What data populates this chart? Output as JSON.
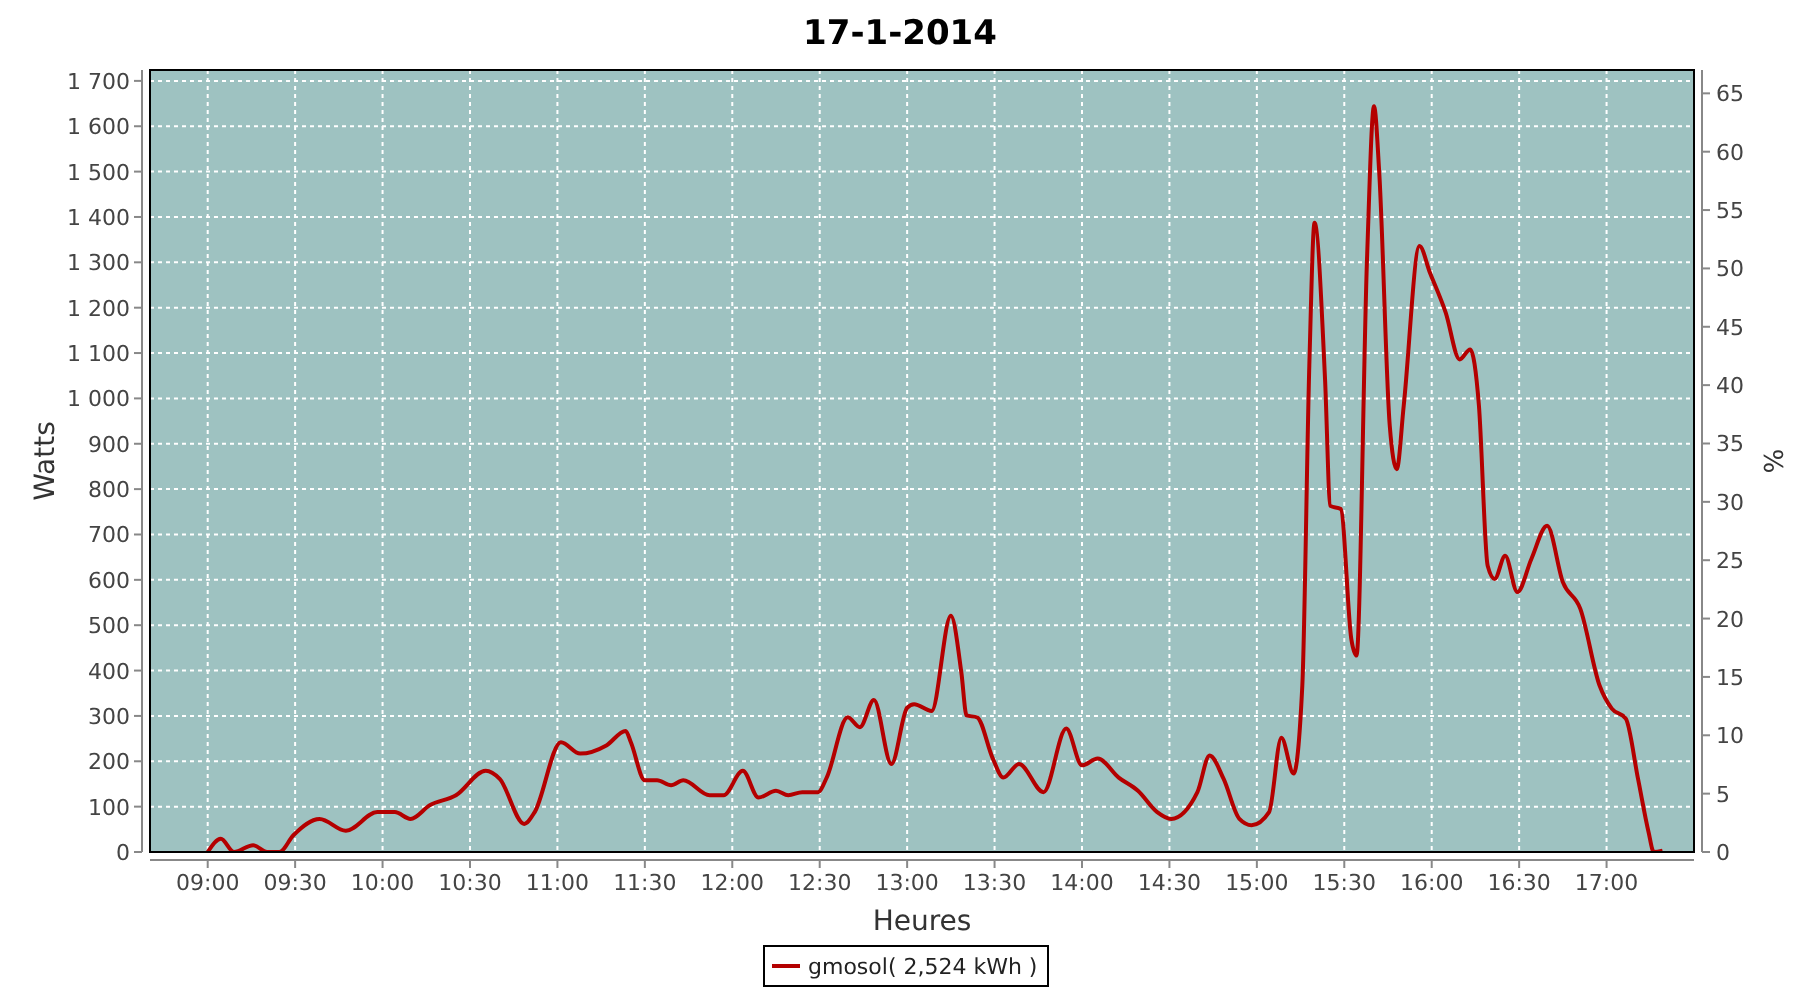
{
  "chart_data": {
    "type": "line",
    "title": "17-1-2014",
    "xlabel": "Heures",
    "ylabel": "Watts",
    "y2label": "%",
    "xlim": [
      8.67,
      17.5
    ],
    "xticks": [
      {
        "value": 9,
        "label": "09:00"
      },
      {
        "value": 9.5,
        "label": "09:30"
      },
      {
        "value": 10,
        "label": "10:00"
      },
      {
        "value": 10.5,
        "label": "10:30"
      },
      {
        "value": 11,
        "label": "11:00"
      },
      {
        "value": 11.5,
        "label": "11:30"
      },
      {
        "value": 12,
        "label": "12:00"
      },
      {
        "value": 12.5,
        "label": "12:30"
      },
      {
        "value": 13,
        "label": "13:00"
      },
      {
        "value": 13.5,
        "label": "13:30"
      },
      {
        "value": 14,
        "label": "14:00"
      },
      {
        "value": 14.5,
        "label": "14:30"
      },
      {
        "value": 15,
        "label": "15:00"
      },
      {
        "value": 15.5,
        "label": "15:30"
      },
      {
        "value": 16,
        "label": "16:00"
      },
      {
        "value": 16.5,
        "label": "16:30"
      },
      {
        "value": 17,
        "label": "17:00"
      }
    ],
    "ylim": [
      0,
      1724
    ],
    "yticks": [
      0,
      100,
      200,
      300,
      400,
      500,
      600,
      700,
      800,
      900,
      {
        "value": 1000,
        "label": "1 000"
      },
      {
        "value": 1100,
        "label": "1 100"
      },
      {
        "value": 1200,
        "label": "1 200"
      },
      {
        "value": 1300,
        "label": "1 300"
      },
      {
        "value": 1400,
        "label": "1 400"
      },
      {
        "value": 1500,
        "label": "1 500"
      },
      {
        "value": 1600,
        "label": "1 600"
      },
      {
        "value": 1700,
        "label": "1 700"
      }
    ],
    "y2lim": [
      0,
      67
    ],
    "y2ticks": [
      0,
      5,
      10,
      15,
      20,
      25,
      30,
      35,
      40,
      45,
      50,
      55,
      60,
      65
    ],
    "grid": true,
    "legend": "bottom",
    "marker": "none",
    "line_style": "solid",
    "series": [
      {
        "name": "gmosol( 2,524 kWh )",
        "color": "#b40000",
        "x": [
          9.0,
          9.075,
          9.15,
          9.26,
          9.34,
          9.41,
          9.49,
          9.64,
          9.79,
          9.97,
          10.07,
          10.16,
          10.27,
          10.42,
          10.59,
          10.67,
          10.81,
          10.87,
          11.02,
          11.13,
          11.28,
          11.39,
          11.42,
          11.5,
          11.57,
          11.65,
          11.72,
          11.87,
          11.95,
          12.06,
          12.15,
          12.25,
          12.32,
          12.4,
          12.49,
          12.54,
          12.66,
          12.73,
          12.81,
          12.91,
          13.0,
          13.04,
          13.14,
          13.25,
          13.31,
          13.34,
          13.4,
          13.49,
          13.55,
          13.64,
          13.78,
          13.91,
          14.0,
          14.09,
          14.21,
          14.32,
          14.43,
          14.51,
          14.66,
          14.73,
          14.81,
          14.9,
          14.97,
          15.07,
          15.14,
          15.21,
          15.26,
          15.3,
          15.33,
          15.39,
          15.42,
          15.48,
          15.54,
          15.57,
          15.63,
          15.67,
          15.7,
          15.76,
          15.8,
          15.84,
          15.93,
          15.99,
          16.08,
          16.16,
          16.22,
          16.27,
          16.32,
          16.36,
          16.42,
          16.49,
          16.57,
          16.66,
          16.75,
          16.85,
          16.96,
          17.03,
          17.11,
          17.18,
          17.24,
          17.27,
          17.32
        ],
        "values": [
          0,
          29,
          0,
          15,
          0,
          0,
          37,
          73,
          47,
          88,
          88,
          73,
          103,
          125,
          179,
          161,
          62,
          88,
          242,
          217,
          235,
          267,
          242,
          158,
          158,
          147,
          158,
          125,
          125,
          179,
          120,
          135,
          125,
          132,
          132,
          164,
          297,
          275,
          335,
          194,
          318,
          326,
          311,
          521,
          396,
          301,
          297,
          206,
          164,
          194,
          132,
          272,
          191,
          206,
          164,
          135,
          88,
          73,
          132,
          213,
          161,
          73,
          59,
          88,
          252,
          173,
          367,
          1072,
          1387,
          1042,
          763,
          756,
          470,
          433,
          1307,
          1644,
          1497,
          940,
          844,
          984,
          1336,
          1277,
          1189,
          1086,
          1108,
          984,
          631,
          602,
          653,
          573,
          646,
          719,
          595,
          536,
          367,
          316,
          294,
          161,
          44,
          0,
          3
        ]
      }
    ]
  }
}
